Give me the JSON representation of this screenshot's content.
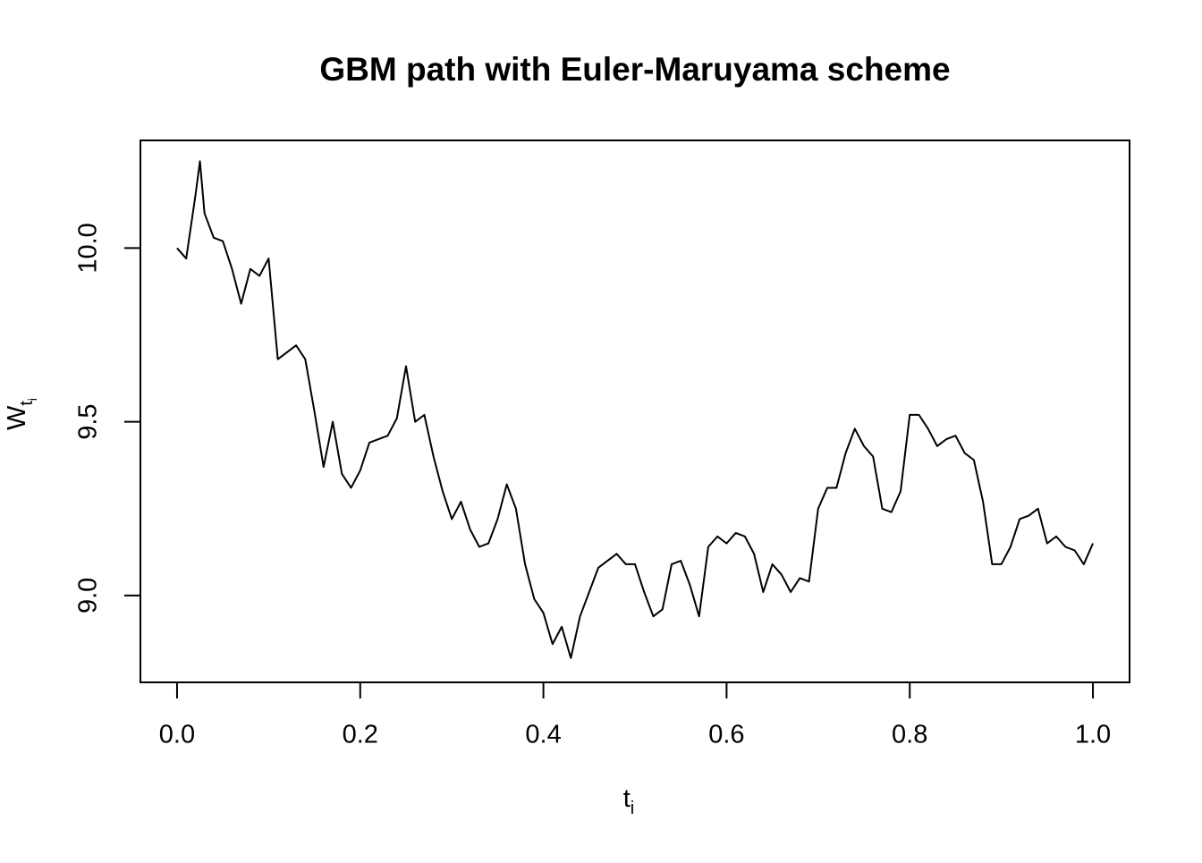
{
  "chart_data": {
    "type": "line",
    "title": "GBM path with Euler-Maruyama scheme",
    "x_label": {
      "base": "t",
      "sub": "i"
    },
    "y_label": {
      "base": "W",
      "sub": "t",
      "subsub": "i"
    },
    "x": [
      0,
      0.01,
      0.02,
      0.025,
      0.03,
      0.04,
      0.05,
      0.06,
      0.07,
      0.08,
      0.09,
      0.1,
      0.11,
      0.12,
      0.13,
      0.14,
      0.15,
      0.16,
      0.17,
      0.18,
      0.19,
      0.2,
      0.21,
      0.22,
      0.23,
      0.24,
      0.25,
      0.26,
      0.27,
      0.28,
      0.29,
      0.3,
      0.31,
      0.32,
      0.33,
      0.34,
      0.35,
      0.36,
      0.37,
      0.38,
      0.39,
      0.4,
      0.41,
      0.42,
      0.43,
      0.44,
      0.45,
      0.46,
      0.47,
      0.48,
      0.49,
      0.5,
      0.51,
      0.52,
      0.53,
      0.54,
      0.55,
      0.56,
      0.57,
      0.58,
      0.59,
      0.6,
      0.61,
      0.62,
      0.63,
      0.64,
      0.65,
      0.66,
      0.67,
      0.68,
      0.69,
      0.7,
      0.71,
      0.72,
      0.73,
      0.74,
      0.75,
      0.76,
      0.77,
      0.78,
      0.79,
      0.8,
      0.81,
      0.82,
      0.83,
      0.84,
      0.85,
      0.86,
      0.87,
      0.88,
      0.89,
      0.9,
      0.91,
      0.92,
      0.93,
      0.94,
      0.95,
      0.96,
      0.97,
      0.98,
      0.99,
      1.0
    ],
    "values": [
      10.0,
      9.97,
      10.15,
      10.25,
      10.1,
      10.03,
      10.02,
      9.94,
      9.84,
      9.94,
      9.92,
      9.97,
      9.68,
      9.7,
      9.72,
      9.68,
      9.53,
      9.37,
      9.5,
      9.35,
      9.31,
      9.36,
      9.44,
      9.45,
      9.46,
      9.51,
      9.66,
      9.5,
      9.52,
      9.4,
      9.3,
      9.22,
      9.27,
      9.19,
      9.14,
      9.15,
      9.22,
      9.32,
      9.25,
      9.09,
      8.99,
      8.95,
      8.86,
      8.91,
      8.82,
      8.94,
      9.01,
      9.08,
      9.1,
      9.12,
      9.09,
      9.09,
      9.01,
      8.94,
      8.96,
      9.09,
      9.1,
      9.03,
      8.94,
      9.14,
      9.17,
      9.15,
      9.18,
      9.17,
      9.12,
      9.01,
      9.09,
      9.06,
      9.01,
      9.05,
      9.04,
      9.25,
      9.31,
      9.31,
      9.41,
      9.48,
      9.43,
      9.4,
      9.25,
      9.24,
      9.3,
      9.52,
      9.52,
      9.48,
      9.43,
      9.45,
      9.46,
      9.41,
      9.39,
      9.27,
      9.09,
      9.09,
      9.14,
      9.22,
      9.23,
      9.25,
      9.15,
      9.17,
      9.14,
      9.13,
      9.09,
      9.15
    ],
    "color": "#000000",
    "xlim": [
      -0.04,
      1.04
    ],
    "ylim": [
      8.75,
      10.31
    ],
    "xticks": [
      {
        "value": 0,
        "label": "0.0"
      },
      0.2,
      0.4,
      0.6,
      0.8,
      {
        "value": 1,
        "label": "1.0"
      }
    ],
    "yticks": [
      {
        "value": 9,
        "label": "9.0"
      },
      9.5,
      {
        "value": 10,
        "label": "10.0"
      }
    ]
  }
}
